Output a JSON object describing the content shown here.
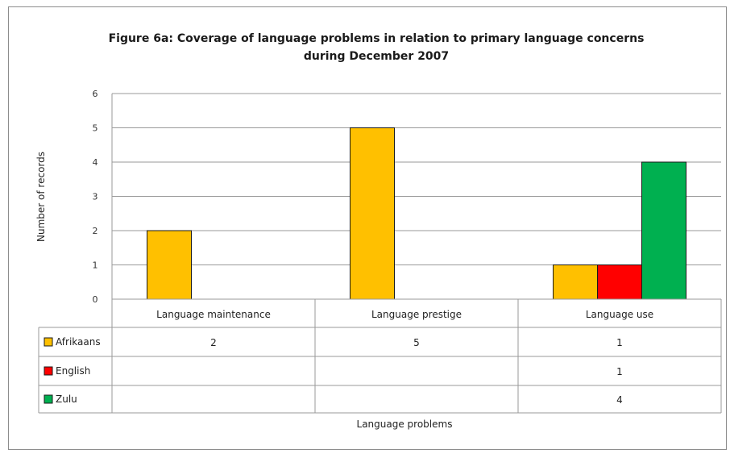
{
  "chart_data": {
    "type": "bar",
    "title_line1": "Figure 6a: Coverage of language problems in relation to primary language concerns",
    "title_line2": "during December 2007",
    "xlabel": "Language problems",
    "ylabel": "Number of records",
    "ylim": [
      0,
      6
    ],
    "yticks": [
      "0",
      "1",
      "2",
      "3",
      "4",
      "5",
      "6"
    ],
    "categories": [
      "Language maintenance",
      "Language prestige",
      "Language use"
    ],
    "series": [
      {
        "name": "Afrikaans",
        "color": "#FFC000",
        "values": [
          2,
          5,
          1
        ],
        "labels": [
          "2",
          "5",
          "1"
        ]
      },
      {
        "name": "English",
        "color": "#FF0000",
        "values": [
          null,
          null,
          1
        ],
        "labels": [
          "",
          "",
          "1"
        ]
      },
      {
        "name": "Zulu",
        "color": "#00B050",
        "values": [
          null,
          null,
          4
        ],
        "labels": [
          "",
          "",
          "4"
        ]
      }
    ],
    "grid": true,
    "legend": "data-table"
  }
}
